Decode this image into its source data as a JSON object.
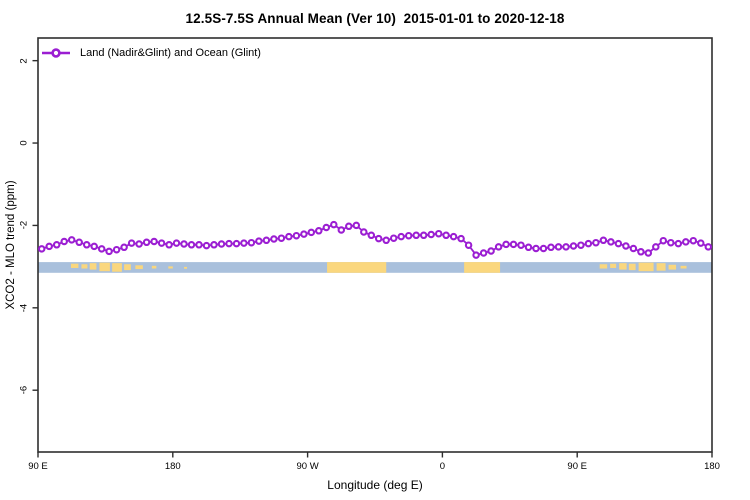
{
  "chart_data": {
    "type": "line",
    "title": "12.5S-7.5S Annual Mean (Ver 10)  2015-01-01 to 2020-12-18",
    "xlabel": "Longitude (deg E)",
    "ylabel": "XCO2 - MLO trend (ppm)",
    "xlim": [
      90,
      540
    ],
    "ylim": [
      -7.5,
      2.55
    ],
    "grid": false,
    "x_ticks": [
      {
        "label": "90 E",
        "value": 90
      },
      {
        "label": "180",
        "value": 180
      },
      {
        "label": "90 W",
        "value": 270
      },
      {
        "label": "0",
        "value": 360
      },
      {
        "label": "90 E",
        "value": 450
      },
      {
        "label": "180",
        "value": 540
      }
    ],
    "y_ticks": [
      {
        "label": "2",
        "value": 2
      },
      {
        "label": "0",
        "value": 0
      },
      {
        "label": "-2",
        "value": -2
      },
      {
        "label": "-4",
        "value": -4
      },
      {
        "label": "-6",
        "value": -6
      }
    ],
    "legend": {
      "label": "Land (Nadir&Glint) and Ocean (Glint)",
      "position": "top-left",
      "marker": "open-circle-on-line"
    },
    "colors": {
      "line": "#9B1ED2",
      "marker_fill": "#FFFFFF",
      "ocean_band": "#A9C0DC",
      "land_band": "#FAD77E",
      "axis": "#2E2E2E",
      "text": "#000000"
    },
    "series": [
      {
        "name": "Land (Nadir&Glint) and Ocean (Glint)",
        "x": [
          92.5,
          97.5,
          102.5,
          107.5,
          112.5,
          117.5,
          122.5,
          127.5,
          132.5,
          137.5,
          142.5,
          147.5,
          152.5,
          157.5,
          162.5,
          167.5,
          172.5,
          177.5,
          182.5,
          187.5,
          192.5,
          197.5,
          202.5,
          207.5,
          212.5,
          217.5,
          222.5,
          227.5,
          232.5,
          237.5,
          242.5,
          247.5,
          252.5,
          257.5,
          262.5,
          267.5,
          272.5,
          277.5,
          282.5,
          287.5,
          292.5,
          297.5,
          302.5,
          307.5,
          312.5,
          317.5,
          322.5,
          327.5,
          332.5,
          337.5,
          342.5,
          347.5,
          352.5,
          357.5,
          362.5,
          367.5,
          372.5,
          377.5,
          382.5,
          387.5,
          392.5,
          397.5,
          402.5,
          407.5,
          412.5,
          417.5,
          422.5,
          427.5,
          432.5,
          437.5,
          442.5,
          447.5,
          452.5,
          457.5,
          462.5,
          467.5,
          472.5,
          477.5,
          482.5,
          487.5,
          492.5,
          497.5,
          502.5,
          507.5,
          512.5,
          517.5,
          522.5,
          527.5,
          532.5,
          537.5
        ],
        "y": [
          -2.57,
          -2.51,
          -2.47,
          -2.39,
          -2.35,
          -2.41,
          -2.47,
          -2.51,
          -2.57,
          -2.63,
          -2.59,
          -2.53,
          -2.43,
          -2.45,
          -2.41,
          -2.39,
          -2.43,
          -2.47,
          -2.43,
          -2.45,
          -2.47,
          -2.47,
          -2.49,
          -2.47,
          -2.45,
          -2.44,
          -2.44,
          -2.43,
          -2.42,
          -2.38,
          -2.36,
          -2.33,
          -2.31,
          -2.27,
          -2.25,
          -2.21,
          -2.17,
          -2.13,
          -2.05,
          -1.98,
          -2.11,
          -2.02,
          -2.0,
          -2.16,
          -2.24,
          -2.32,
          -2.36,
          -2.31,
          -2.27,
          -2.25,
          -2.24,
          -2.24,
          -2.22,
          -2.2,
          -2.24,
          -2.27,
          -2.32,
          -2.48,
          -2.72,
          -2.67,
          -2.62,
          -2.52,
          -2.46,
          -2.46,
          -2.48,
          -2.53,
          -2.56,
          -2.56,
          -2.53,
          -2.52,
          -2.52,
          -2.5,
          -2.48,
          -2.44,
          -2.42,
          -2.36,
          -2.4,
          -2.44,
          -2.5,
          -2.56,
          -2.64,
          -2.67,
          -2.52,
          -2.37,
          -2.42,
          -2.44,
          -2.4,
          -2.37,
          -2.43,
          -2.52
        ]
      }
    ],
    "map_band": {
      "description": "latitude-strip map: ocean blue with land in tan",
      "top": -2.89,
      "bottom": -3.15,
      "land_segments": [
        {
          "lon0": 112.0,
          "lon1": 117.0,
          "top": 0.15,
          "bot": 0.55
        },
        {
          "lon0": 119.0,
          "lon1": 123.0,
          "top": 0.2,
          "bot": 0.6
        },
        {
          "lon0": 124.5,
          "lon1": 129.0,
          "top": 0.1,
          "bot": 0.7
        },
        {
          "lon0": 131.0,
          "lon1": 138.0,
          "top": 0.05,
          "bot": 0.85
        },
        {
          "lon0": 139.5,
          "lon1": 146.0,
          "top": 0.1,
          "bot": 0.9
        },
        {
          "lon0": 147.5,
          "lon1": 152.0,
          "top": 0.2,
          "bot": 0.75
        },
        {
          "lon0": 155.0,
          "lon1": 160.0,
          "top": 0.3,
          "bot": 0.65
        },
        {
          "lon0": 166.0,
          "lon1": 169.0,
          "top": 0.35,
          "bot": 0.6
        },
        {
          "lon0": 177.0,
          "lon1": 180.0,
          "top": 0.4,
          "bot": 0.6
        },
        {
          "lon0": 187.5,
          "lon1": 189.5,
          "top": 0.45,
          "bot": 0.62
        },
        {
          "lon0": 283.0,
          "lon1": 322.5,
          "top": 0.0,
          "bot": 1.0
        },
        {
          "lon0": 374.5,
          "lon1": 398.5,
          "top": 0.0,
          "bot": 1.0
        },
        {
          "lon0": 465.0,
          "lon1": 470.0,
          "top": 0.2,
          "bot": 0.6
        },
        {
          "lon0": 472.0,
          "lon1": 476.0,
          "top": 0.15,
          "bot": 0.55
        },
        {
          "lon0": 478.0,
          "lon1": 483.0,
          "top": 0.1,
          "bot": 0.7
        },
        {
          "lon0": 484.5,
          "lon1": 489.0,
          "top": 0.15,
          "bot": 0.75
        },
        {
          "lon0": 491.0,
          "lon1": 501.0,
          "top": 0.05,
          "bot": 0.85
        },
        {
          "lon0": 503.0,
          "lon1": 509.0,
          "top": 0.1,
          "bot": 0.8
        },
        {
          "lon0": 511.0,
          "lon1": 516.0,
          "top": 0.25,
          "bot": 0.7
        },
        {
          "lon0": 519.0,
          "lon1": 523.0,
          "top": 0.35,
          "bot": 0.6
        }
      ]
    }
  }
}
